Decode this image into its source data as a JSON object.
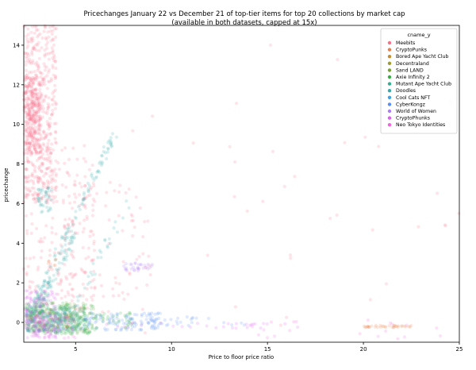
{
  "chart_data": {
    "type": "scatter",
    "title": "Pricechanges January 22 vs December 21 of top-tier items for top 20 collections by market cap",
    "subtitle": "(available in both datasets, capped at 15x)",
    "xlabel": "Price to floor price ratio",
    "ylabel": "pricechange",
    "xlim": [
      2.3,
      25
    ],
    "ylim": [
      -1.0,
      15.0
    ],
    "xticks": [
      5,
      10,
      15,
      20,
      25
    ],
    "yticks": [
      0,
      2,
      4,
      6,
      8,
      10,
      12,
      14
    ],
    "grid": false,
    "legend_position": "top-right",
    "legend_title": "cname_y",
    "series": [
      {
        "name": "Meebits",
        "color": "#f77189",
        "clusters": [
          {
            "x": [
              2.3,
              4.0
            ],
            "y": [
              6.0,
              15.0
            ],
            "density": 420
          },
          {
            "x": [
              2.3,
              3.2
            ],
            "y": [
              8.5,
              12.5
            ],
            "density": 300
          },
          {
            "x": [
              2.3,
              6.0
            ],
            "y": [
              0.5,
              9.0
            ],
            "density": 220
          },
          {
            "x": [
              4.0,
              9.0
            ],
            "y": [
              0.5,
              7.0
            ],
            "density": 80
          },
          {
            "x": [
              6.0,
              25.0
            ],
            "y": [
              -0.8,
              14.5
            ],
            "density": 40
          }
        ]
      },
      {
        "name": "CryptoPunks",
        "color": "#e9814a",
        "clusters": [
          {
            "x": [
              20.0,
              22.5
            ],
            "y": [
              -0.25,
              -0.15
            ],
            "density": 35
          },
          {
            "x": [
              3.5,
              4.0
            ],
            "y": [
              2.6,
              3.2
            ],
            "density": 8
          }
        ]
      },
      {
        "name": "Bored Ape Yacht Club",
        "color": "#c78e32",
        "clusters": [
          {
            "x": [
              2.4,
              5.0
            ],
            "y": [
              -0.3,
              0.5
            ],
            "density": 60
          }
        ]
      },
      {
        "name": "Decentraland",
        "color": "#a09a31",
        "clusters": [
          {
            "x": [
              2.4,
              5.5
            ],
            "y": [
              -0.5,
              0.8
            ],
            "density": 60
          }
        ]
      },
      {
        "name": "Sand LAND",
        "color": "#77a231",
        "clusters": [
          {
            "x": [
              2.4,
              6.0
            ],
            "y": [
              -0.5,
              1.0
            ],
            "density": 70
          }
        ]
      },
      {
        "name": "Axie Infinity 2",
        "color": "#33b040",
        "clusters": [
          {
            "x": [
              2.4,
              6.0
            ],
            "y": [
              -0.6,
              1.0
            ],
            "density": 260
          },
          {
            "x": [
              6.0,
              8.0
            ],
            "y": [
              -0.3,
              0.5
            ],
            "density": 40
          }
        ]
      },
      {
        "name": "Mutant Ape Yacht Club",
        "color": "#35ad8e",
        "clusters": [
          {
            "x": [
              2.4,
              5.5
            ],
            "y": [
              -0.5,
              0.8
            ],
            "density": 200
          },
          {
            "x": [
              3.0,
              3.6
            ],
            "y": [
              -0.5,
              1.5
            ],
            "density": 40
          }
        ]
      },
      {
        "name": "Doodles",
        "color": "#38aaac",
        "clusters": [
          {
            "line": true,
            "x0": 2.6,
            "y0": 0.5,
            "x1": 7.0,
            "y1": 9.5,
            "density": 110
          },
          {
            "line": true,
            "x0": 2.6,
            "y0": 0.0,
            "x1": 5.0,
            "y1": 4.5,
            "density": 70
          },
          {
            "x": [
              3.0,
              3.8
            ],
            "y": [
              5.5,
              6.8
            ],
            "density": 40
          },
          {
            "line": true,
            "x0": 4.5,
            "y0": 0.0,
            "x1": 8.0,
            "y1": 6.5,
            "density": 30
          }
        ]
      },
      {
        "name": "Cool Cats NFT",
        "color": "#3ba3ec",
        "clusters": [
          {
            "x": [
              2.4,
              4.5
            ],
            "y": [
              -0.5,
              0.5
            ],
            "density": 50
          }
        ]
      },
      {
        "name": "CyberKongz",
        "color": "#5b8ef5",
        "clusters": [
          {
            "x": [
              5.0,
              9.5
            ],
            "y": [
              -0.4,
              0.5
            ],
            "density": 110
          },
          {
            "x": [
              9.0,
              14.0
            ],
            "y": [
              -0.2,
              0.3
            ],
            "density": 25
          }
        ]
      },
      {
        "name": "World of Women",
        "color": "#ad7cf7",
        "clusters": [
          {
            "x": [
              7.5,
              9.0
            ],
            "y": [
              2.6,
              3.0
            ],
            "density": 30
          },
          {
            "x": [
              2.4,
              5.0
            ],
            "y": [
              -0.5,
              0.5
            ],
            "density": 40
          }
        ]
      },
      {
        "name": "CryptoPhunks",
        "color": "#e05ff2",
        "clusters": [
          {
            "x": [
              2.4,
              4.0
            ],
            "y": [
              -0.8,
              1.6
            ],
            "density": 120
          },
          {
            "x": [
              6.0,
              17.0
            ],
            "y": [
              -0.3,
              0.0
            ],
            "density": 30
          }
        ]
      },
      {
        "name": "Neo Tokyo Identities",
        "color": "#f461dd",
        "clusters": [
          {
            "x": [
              2.4,
              5.0
            ],
            "y": [
              -0.8,
              0.3
            ],
            "density": 60
          },
          {
            "x": [
              14.0,
              25.0
            ],
            "y": [
              -0.9,
              0.2
            ],
            "density": 20
          }
        ]
      }
    ]
  }
}
